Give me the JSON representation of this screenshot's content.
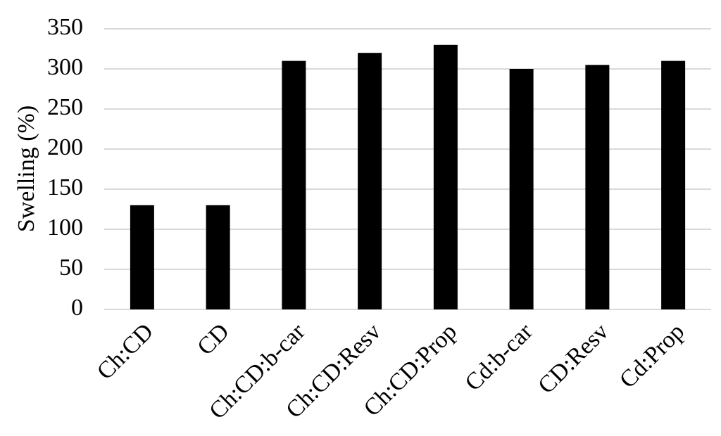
{
  "chart_data": {
    "type": "bar",
    "y_label": "Swelling (%)",
    "categories": [
      "Ch:CD",
      "CD",
      "Ch:CD:b-car",
      "Ch:CD:Resv",
      "Ch:CD:Prop",
      "Cd:b-car",
      "CD:Resv",
      "Cd:Prop"
    ],
    "values": [
      130,
      130,
      310,
      320,
      330,
      300,
      305,
      310
    ],
    "color": "#000000",
    "ylim": [
      0,
      350
    ],
    "yticks": [
      0,
      50,
      100,
      150,
      200,
      250,
      300,
      350
    ],
    "grid": true
  }
}
